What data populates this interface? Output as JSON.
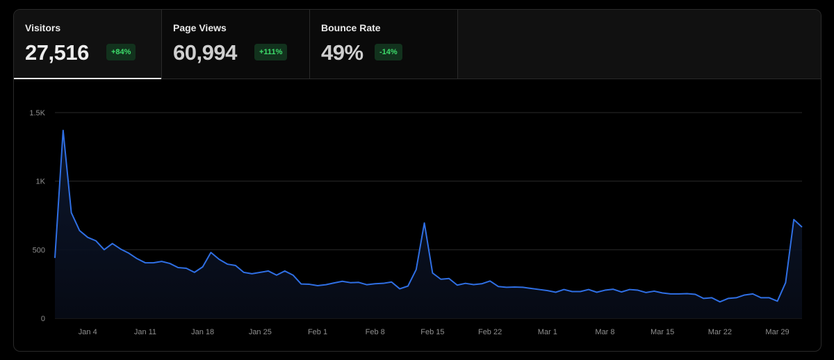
{
  "metrics": [
    {
      "label": "Visitors",
      "value": "27,516",
      "change": "+84%",
      "active": true
    },
    {
      "label": "Page Views",
      "value": "60,994",
      "change": "+111%",
      "active": false
    },
    {
      "label": "Bounce Rate",
      "value": "49%",
      "change": "-14%",
      "active": false
    }
  ],
  "colors": {
    "line": "#2f6fe4",
    "badge_bg": "#12321d",
    "badge_text": "#3ddc6b",
    "grid": "#2a2a2a",
    "background": "#000000"
  },
  "chart_data": {
    "type": "area",
    "title": "",
    "xlabel": "",
    "ylabel": "",
    "ylim": [
      0,
      1500
    ],
    "y_ticks": [
      0,
      500,
      1000,
      1500
    ],
    "y_tick_labels": [
      "0",
      "500",
      "1K",
      "1.5K"
    ],
    "x_tick_labels": [
      "Jan 4",
      "Jan 11",
      "Jan 18",
      "Jan 25",
      "Feb 1",
      "Feb 8",
      "Feb 15",
      "Feb 22",
      "Mar 1",
      "Mar 8",
      "Mar 15",
      "Mar 22",
      "Mar 29"
    ],
    "x_start": "Dec 31",
    "x_end": "Mar 30",
    "grid": true,
    "series": [
      {
        "values": [
          440,
          1370,
          770,
          640,
          590,
          565,
          500,
          545,
          505,
          475,
          435,
          405,
          405,
          415,
          400,
          370,
          365,
          335,
          375,
          480,
          430,
          395,
          385,
          335,
          325,
          335,
          345,
          315,
          345,
          315,
          250,
          248,
          238,
          245,
          258,
          270,
          260,
          262,
          245,
          252,
          255,
          265,
          215,
          235,
          355,
          695,
          330,
          285,
          290,
          242,
          255,
          246,
          252,
          272,
          232,
          226,
          228,
          226,
          218,
          210,
          202,
          190,
          210,
          195,
          195,
          210,
          190,
          205,
          212,
          192,
          210,
          205,
          188,
          198,
          185,
          178,
          178,
          180,
          175,
          145,
          150,
          120,
          145,
          150,
          170,
          178,
          150,
          150,
          125,
          260,
          720,
          665
        ]
      }
    ]
  }
}
